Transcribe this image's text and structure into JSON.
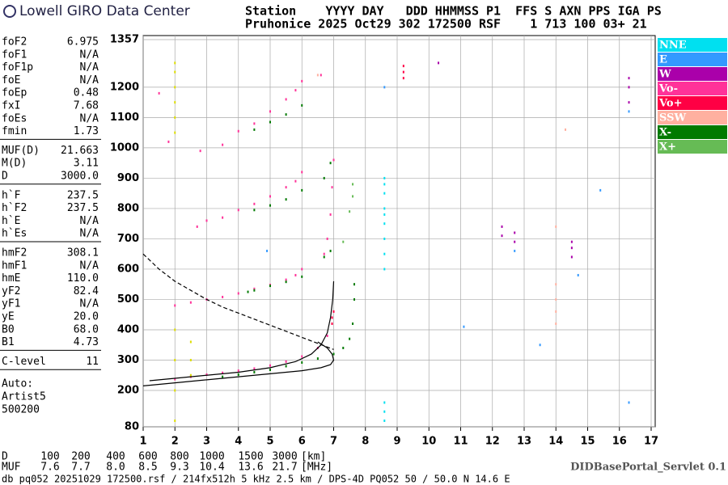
{
  "header": {
    "logo": "Lowell GIRO Data Center",
    "line1": "Station    YYYY DAY   DDD HHMMSS P1  FFS S AXN PPS IGA PS",
    "line2": "Pruhonice 2025 Oct29 302 172500 RSF    1 713 100 03+ 21"
  },
  "parameters": [
    [
      [
        "foF2",
        "6.975"
      ],
      [
        "foF1",
        "N/A"
      ],
      [
        "foF1p",
        "N/A"
      ],
      [
        "foE",
        "N/A"
      ],
      [
        "foEp",
        "0.48"
      ],
      [
        "fxI",
        "7.68"
      ],
      [
        "foEs",
        "N/A"
      ],
      [
        "fmin",
        "1.73"
      ]
    ],
    [
      [
        "MUF(D)",
        "21.663"
      ],
      [
        "M(D)",
        "3.11"
      ],
      [
        "D",
        "3000.0"
      ]
    ],
    [
      [
        "h`F",
        "237.5"
      ],
      [
        "h`F2",
        "237.5"
      ],
      [
        "h`E",
        "N/A"
      ],
      [
        "h`Es",
        "N/A"
      ]
    ],
    [
      [
        "hmF2",
        "308.1"
      ],
      [
        "hmF1",
        "N/A"
      ],
      [
        "hmE",
        "110.0"
      ],
      [
        "yF2",
        "82.4"
      ],
      [
        "yF1",
        "N/A"
      ],
      [
        "yE",
        "20.0"
      ],
      [
        "B0",
        "68.0"
      ],
      [
        "B1",
        "4.73"
      ]
    ],
    [
      [
        "C-level",
        "11"
      ]
    ]
  ],
  "autoscaling": [
    "Auto:",
    "Artist5",
    "500200"
  ],
  "muf_table": {
    "d_label": "D",
    "d_values": [
      "100",
      "200",
      "400",
      "600",
      "800",
      "1000",
      "1500",
      "3000"
    ],
    "d_unit": "[km]",
    "muf_label": "MUF",
    "muf_values": [
      "7.6",
      "7.7",
      "8.0",
      "8.5",
      "9.3",
      "10.4",
      "13.6",
      "21.7"
    ],
    "muf_unit": "[MHz]"
  },
  "footer": {
    "left": "db pq052 20251029 172500.rsf / 214fx512h 5 kHz 2.5 km / DPS-4D PQ052 50 / 50.0 N 14.6 E",
    "right": "DIDBasePortal_Servlet 0.1"
  },
  "chart_data": {
    "type": "scatter",
    "xlim": [
      1,
      17
    ],
    "ylim": [
      80,
      1357
    ],
    "xticks": [
      1,
      2,
      3,
      4,
      5,
      6,
      7,
      8,
      9,
      10,
      11,
      12,
      13,
      14,
      15,
      16,
      17
    ],
    "yticks": [
      80,
      200,
      300,
      400,
      500,
      600,
      700,
      800,
      900,
      1000,
      1100,
      1200,
      1357
    ],
    "grid": true,
    "series": [
      {
        "name": "NNE",
        "color": "#00e0f0",
        "x": [
          8.6,
          8.6,
          8.6,
          8.6,
          8.6,
          8.6,
          8.6,
          8.6,
          8.6,
          8.6,
          8.6,
          8.6
        ],
        "values": [
          600,
          650,
          700,
          750,
          780,
          800,
          850,
          880,
          900,
          100,
          130,
          160
        ]
      },
      {
        "name": "E",
        "color": "#3399ff",
        "x": [
          12.7,
          14.7,
          16.3,
          11.1,
          8.6,
          4.9,
          13.5,
          15.4,
          16.3
        ],
        "values": [
          660,
          580,
          1120,
          410,
          1200,
          660,
          350,
          860,
          160
        ]
      },
      {
        "name": "W",
        "color": "#aa00aa",
        "x": [
          12.7,
          12.7,
          14.5,
          14.5,
          14.5,
          16.3,
          16.3,
          16.3,
          10.3,
          12.3,
          12.3
        ],
        "values": [
          690,
          720,
          640,
          670,
          690,
          1150,
          1200,
          1230,
          1280,
          710,
          740
        ]
      },
      {
        "name": "Vo-",
        "color": "#ff3399",
        "x": [
          2.0,
          2.5,
          3.0,
          3.5,
          4.0,
          4.5,
          5.0,
          5.5,
          6.0,
          6.5,
          6.8,
          6.95,
          2.0,
          2.5,
          3.0,
          3.5,
          4.0,
          4.5,
          5.0,
          5.5,
          5.8,
          6.0,
          2.7,
          3.0,
          3.5,
          4.0,
          4.5,
          5.0,
          5.5,
          5.8,
          6.0,
          2.8,
          3.5,
          4.0,
          4.5,
          5.0,
          5.5,
          5.8,
          6.0,
          6.7,
          6.8,
          6.9,
          6.95,
          7.0,
          6.6,
          1.8,
          1.5
        ],
        "values": [
          237,
          245,
          252,
          258,
          265,
          272,
          282,
          295,
          312,
          340,
          380,
          440,
          480,
          490,
          500,
          508,
          520,
          535,
          548,
          565,
          580,
          600,
          740,
          760,
          770,
          795,
          815,
          840,
          870,
          890,
          920,
          990,
          1010,
          1055,
          1080,
          1120,
          1160,
          1190,
          1220,
          650,
          700,
          780,
          870,
          960,
          1240,
          1020,
          1180
        ]
      },
      {
        "name": "Vo+",
        "color": "#ff0044",
        "x": [
          6.95,
          6.95,
          7.0,
          9.2,
          9.2,
          9.2
        ],
        "values": [
          420,
          440,
          460,
          1230,
          1250,
          1270
        ]
      },
      {
        "name": "SSW",
        "color": "#ffb0a0",
        "x": [
          14.0,
          14.0,
          14.0,
          14.0,
          14.0,
          6.5,
          14.3
        ],
        "values": [
          420,
          460,
          500,
          550,
          740,
          1240,
          1060
        ]
      },
      {
        "name": "X-",
        "color": "#007a00",
        "x": [
          3.5,
          4.0,
          4.5,
          5.0,
          5.5,
          6.0,
          6.5,
          7.0,
          7.3,
          7.5,
          7.6,
          7.65,
          7.65,
          4.3,
          4.5,
          5.0,
          5.5,
          6.0,
          6.7,
          6.9,
          4.5,
          5.0,
          5.5,
          6.0,
          6.7,
          6.9,
          4.5,
          5.0,
          5.5,
          6.0
        ],
        "values": [
          245,
          252,
          260,
          268,
          280,
          292,
          305,
          320,
          340,
          370,
          420,
          500,
          550,
          525,
          530,
          545,
          558,
          575,
          640,
          660,
          795,
          810,
          830,
          860,
          900,
          950,
          1060,
          1085,
          1110,
          1140
        ]
      },
      {
        "name": "X+",
        "color": "#66bb55",
        "x": [
          7.6,
          7.6,
          7.5,
          7.3
        ],
        "values": [
          840,
          880,
          790,
          690
        ]
      },
      {
        "color": "#dddd00",
        "x": [
          2.0,
          2.0,
          2.0,
          2.0,
          2.0,
          2.0,
          2.0,
          2.0,
          2.0,
          2.0,
          2.5,
          2.5,
          2.5
        ],
        "values": [
          100,
          200,
          300,
          400,
          1050,
          1100,
          1150,
          1200,
          1250,
          1280,
          250,
          300,
          360
        ]
      },
      {
        "style": "line",
        "color": "#000000",
        "x": [
          1.2,
          2.0,
          3.0,
          4.0,
          5.0,
          5.8,
          6.3,
          6.6,
          6.8,
          6.9,
          6.97,
          7.0
        ],
        "values": [
          232,
          240,
          250,
          260,
          275,
          295,
          320,
          350,
          390,
          440,
          500,
          560
        ]
      },
      {
        "style": "line",
        "color": "#000000",
        "x": [
          1.0,
          2.0,
          3.0,
          4.0,
          5.0,
          6.0,
          6.6,
          6.9,
          7.0,
          6.95,
          6.8,
          6.5
        ],
        "values": [
          215,
          225,
          235,
          245,
          255,
          265,
          275,
          285,
          300,
          320,
          340,
          360
        ]
      },
      {
        "style": "dashed",
        "color": "#000000",
        "x": [
          1.0,
          1.5,
          2.0,
          2.5,
          3.0,
          3.5,
          4.0,
          4.5,
          5.0,
          5.5,
          6.0,
          6.5,
          7.0
        ],
        "values": [
          650,
          600,
          560,
          530,
          500,
          475,
          455,
          435,
          415,
          395,
          375,
          355,
          335
        ]
      }
    ]
  }
}
